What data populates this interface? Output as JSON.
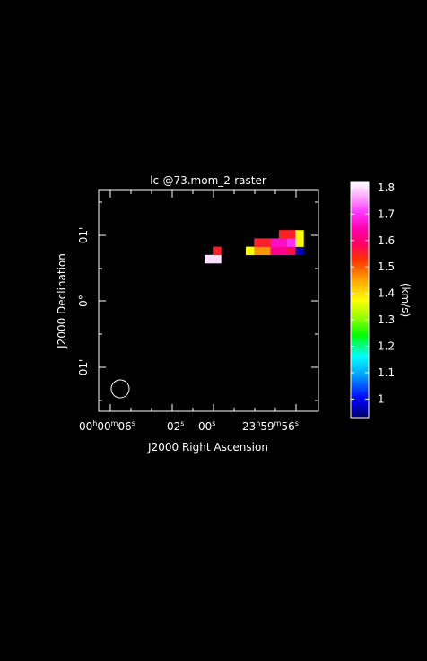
{
  "chart_data": {
    "type": "heatmap",
    "title": "lc-@73.mom_2-raster",
    "xlabel": "J2000 Right Ascension",
    "ylabel": "J2000 Declination",
    "x_ticks": [
      {
        "label": "00h00m06s"
      },
      {
        "label": "02s"
      },
      {
        "label": "00s"
      },
      {
        "label": "23h59m56s"
      }
    ],
    "y_ticks": [
      {
        "label": "01'"
      },
      {
        "label": "0°"
      },
      {
        "label": "01'"
      }
    ],
    "colorbar": {
      "label": "(km/s)",
      "range": [
        0.93,
        1.82
      ],
      "ticks": [
        "1",
        "1.1",
        "1.2",
        "1.3",
        "1.4",
        "1.5",
        "1.6",
        "1.7",
        "1.8"
      ],
      "tick_values": [
        1.0,
        1.1,
        1.2,
        1.3,
        1.4,
        1.5,
        1.6,
        1.7,
        1.8
      ]
    },
    "beam": "circle",
    "pixels": [
      {
        "col": 0,
        "row": 0,
        "value": 1.8
      },
      {
        "col": 1,
        "row": 0,
        "value": 1.8
      },
      {
        "col": 1,
        "row": 1,
        "value": 1.55
      },
      {
        "col": 5,
        "row": 1,
        "value": 1.37
      },
      {
        "col": 6,
        "row": 1,
        "value": 1.46
      },
      {
        "col": 7,
        "row": 1,
        "value": 1.46
      },
      {
        "col": 8,
        "row": 1,
        "value": 1.62
      },
      {
        "col": 9,
        "row": 1,
        "value": 1.62
      },
      {
        "col": 10,
        "row": 1,
        "value": 1.57
      },
      {
        "col": 11,
        "row": 1,
        "value": 0.97
      },
      {
        "col": 6,
        "row": 2,
        "value": 1.55
      },
      {
        "col": 7,
        "row": 2,
        "value": 1.55
      },
      {
        "col": 8,
        "row": 2,
        "value": 1.66
      },
      {
        "col": 9,
        "row": 2,
        "value": 1.66
      },
      {
        "col": 10,
        "row": 2,
        "value": 1.7
      },
      {
        "col": 11,
        "row": 2,
        "value": 1.38
      },
      {
        "col": 9,
        "row": 3,
        "value": 1.55
      },
      {
        "col": 10,
        "row": 3,
        "value": 1.55
      },
      {
        "col": 11,
        "row": 3,
        "value": 1.37
      }
    ]
  }
}
